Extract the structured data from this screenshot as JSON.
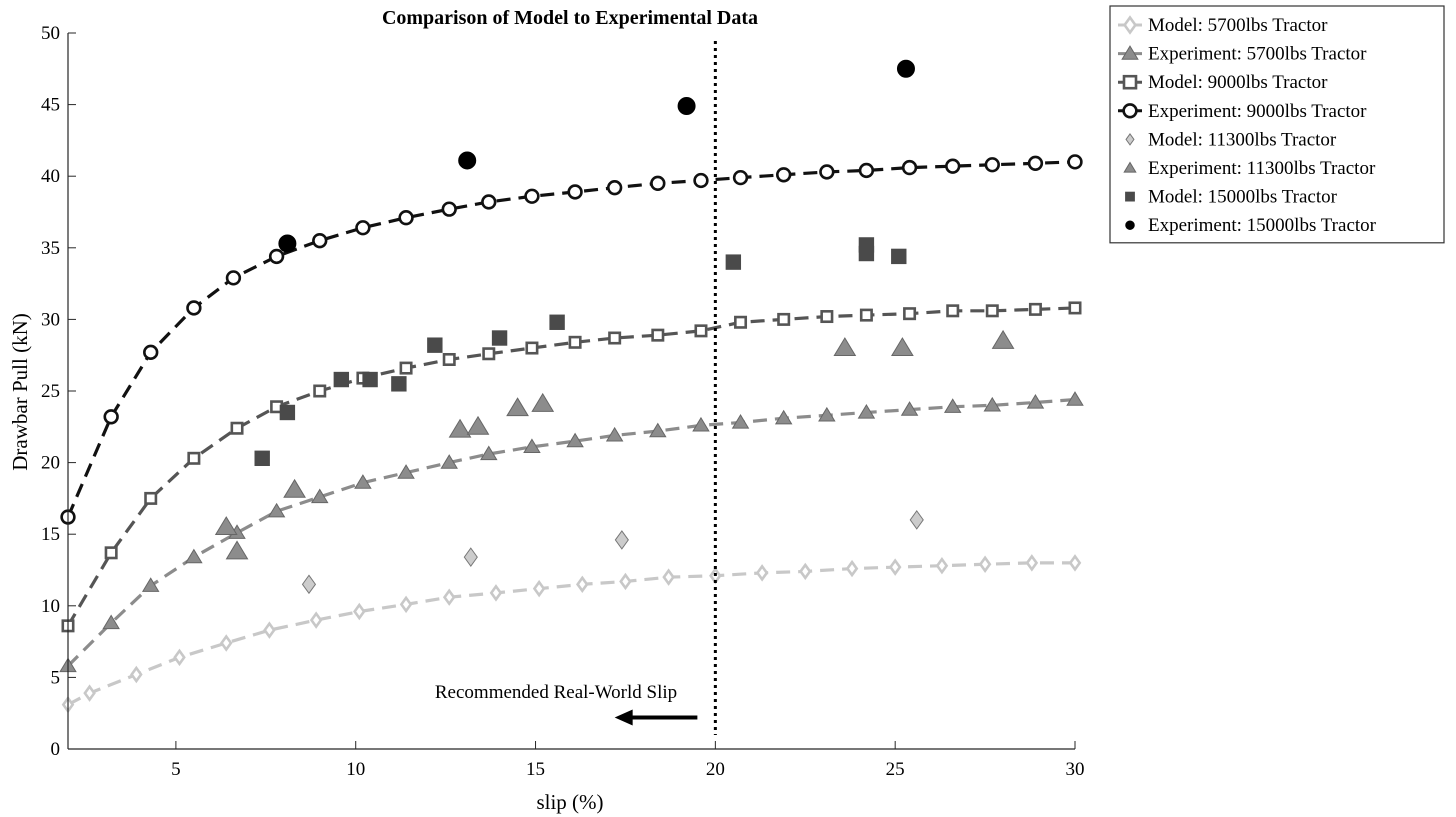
{
  "chart_data": {
    "type": "scatter",
    "title": "Comparison of Model to Experimental Data",
    "xlabel": "slip (%)",
    "ylabel": "Drawbar Pull (kN)",
    "xlim": [
      2,
      30
    ],
    "ylim": [
      0,
      50
    ],
    "xticks": [
      5,
      10,
      15,
      20,
      25,
      30
    ],
    "yticks": [
      0,
      5,
      10,
      15,
      20,
      25,
      30,
      35,
      40,
      45,
      50
    ],
    "grid": false,
    "legend_position": "outside-right",
    "annotation": {
      "text": "Recommended Real-World Slip",
      "vline_x": 20,
      "arrow_from": [
        19.5,
        2.2
      ],
      "arrow_to": [
        17.2,
        2.2
      ]
    },
    "series": [
      {
        "name": "Model: 5700lbs Tractor",
        "kind": "model-line",
        "marker": "diamond-open",
        "color": "#c8c8c8",
        "x": [
          2,
          2.6,
          3.9,
          5.1,
          6.4,
          7.6,
          8.9,
          10.1,
          11.4,
          12.6,
          13.9,
          15.1,
          16.3,
          17.5,
          18.7,
          20,
          21.3,
          22.5,
          23.8,
          25,
          26.3,
          27.5,
          28.8,
          30
        ],
        "y": [
          3.1,
          3.9,
          5.2,
          6.4,
          7.4,
          8.3,
          9.0,
          9.6,
          10.1,
          10.6,
          10.9,
          11.2,
          11.5,
          11.7,
          12.0,
          12.1,
          12.3,
          12.4,
          12.6,
          12.7,
          12.8,
          12.9,
          13.0,
          13.0
        ]
      },
      {
        "name": "Experiment: 5700lbs Tractor",
        "kind": "experiment-line",
        "marker": "triangle-filled",
        "color": "#8c8c8c",
        "x": [
          2,
          3.2,
          4.3,
          5.5,
          6.7,
          7.8,
          9.0,
          10.2,
          11.4,
          12.6,
          13.7,
          14.9,
          16.1,
          17.2,
          18.4,
          19.6,
          20.7,
          21.9,
          23.1,
          24.2,
          25.4,
          26.6,
          27.7,
          28.9,
          30
        ],
        "y": [
          5.8,
          8.8,
          11.4,
          13.4,
          15.1,
          16.6,
          17.6,
          18.6,
          19.3,
          20.0,
          20.6,
          21.1,
          21.5,
          21.9,
          22.2,
          22.6,
          22.8,
          23.1,
          23.3,
          23.5,
          23.7,
          23.9,
          24.0,
          24.2,
          24.4
        ]
      },
      {
        "name": "Model: 9000lbs Tractor",
        "kind": "model-line",
        "marker": "square-open",
        "color": "#555555",
        "x": [
          2,
          3.2,
          4.3,
          5.5,
          6.7,
          7.8,
          9.0,
          10.2,
          11.4,
          12.6,
          13.7,
          14.9,
          16.1,
          17.2,
          18.4,
          19.6,
          20.7,
          21.9,
          23.1,
          24.2,
          25.4,
          26.6,
          27.7,
          28.9,
          30
        ],
        "y": [
          8.6,
          13.7,
          17.5,
          20.3,
          22.4,
          23.9,
          25.0,
          25.9,
          26.6,
          27.2,
          27.6,
          28.0,
          28.4,
          28.7,
          28.9,
          29.2,
          29.8,
          30.0,
          30.2,
          30.3,
          30.4,
          30.6,
          30.6,
          30.7,
          30.8
        ]
      },
      {
        "name": "Experiment: 9000lbs Tractor",
        "kind": "experiment-line",
        "marker": "circle-open",
        "color": "#111111",
        "x": [
          2,
          3.2,
          4.3,
          5.5,
          6.6,
          7.8,
          9.0,
          10.2,
          11.4,
          12.6,
          13.7,
          14.9,
          16.1,
          17.2,
          18.4,
          19.6,
          20.7,
          21.9,
          23.1,
          24.2,
          25.4,
          26.6,
          27.7,
          28.9,
          30
        ],
        "y": [
          16.2,
          23.2,
          27.7,
          30.8,
          32.9,
          34.4,
          35.5,
          36.4,
          37.1,
          37.7,
          38.2,
          38.6,
          38.9,
          39.2,
          39.5,
          39.7,
          39.9,
          40.1,
          40.3,
          40.4,
          40.6,
          40.7,
          40.8,
          40.9,
          41.0
        ]
      },
      {
        "name": "Model: 11300lbs Tractor",
        "kind": "points",
        "marker": "diamond-filled",
        "color": "#cccccc",
        "x": [
          8.7,
          13.2,
          17.4,
          25.6
        ],
        "y": [
          11.5,
          13.4,
          14.6,
          16.0
        ]
      },
      {
        "name": "Experiment: 11300lbs Tractor",
        "kind": "points",
        "marker": "triangle-filled",
        "color": "#8c8c8c",
        "x": [
          6.4,
          6.7,
          8.3,
          12.9,
          13.4,
          14.5,
          15.2,
          23.6,
          25.2,
          28.0
        ],
        "y": [
          15.5,
          13.8,
          18.1,
          22.3,
          22.5,
          23.8,
          24.1,
          28.0,
          28.0,
          28.5
        ]
      },
      {
        "name": "Model: 15000lbs Tractor",
        "kind": "points",
        "marker": "square-filled",
        "color": "#4a4a4a",
        "x": [
          7.4,
          8.1,
          9.6,
          10.4,
          11.2,
          12.2,
          14.0,
          15.6,
          20.5,
          24.2,
          24.2,
          25.1
        ],
        "y": [
          20.3,
          23.5,
          25.8,
          25.8,
          25.5,
          28.2,
          28.7,
          29.8,
          34.0,
          35.2,
          34.6,
          34.4
        ]
      },
      {
        "name": "Experiment: 15000lbs Tractor",
        "kind": "points",
        "marker": "circle-filled",
        "color": "#000000",
        "x": [
          8.1,
          13.1,
          19.2,
          25.3
        ],
        "y": [
          35.3,
          41.1,
          44.9,
          47.5
        ]
      }
    ]
  }
}
